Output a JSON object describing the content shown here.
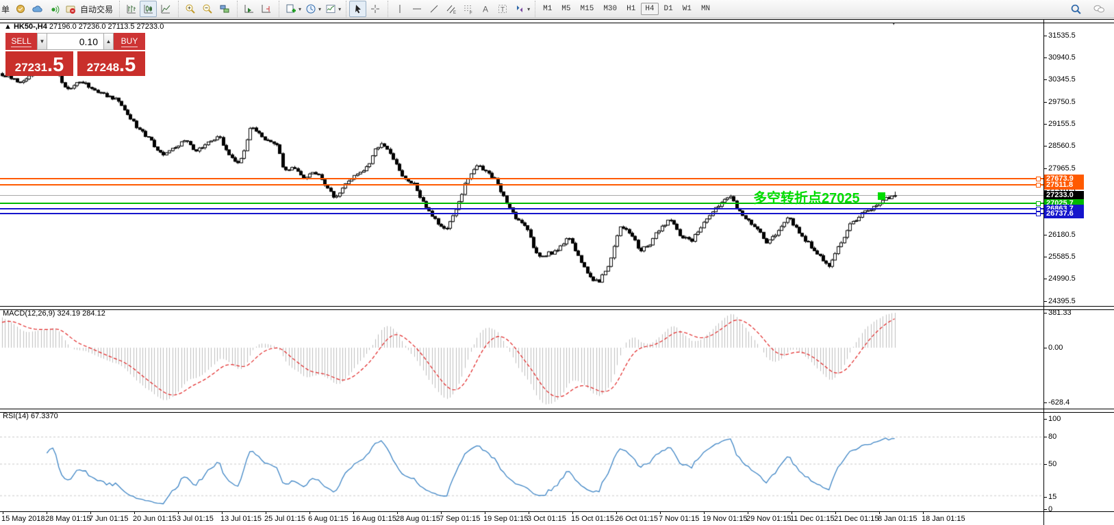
{
  "toolbar": {
    "order_char": "单",
    "auto_trading": "自动交易",
    "timeframes": [
      "M1",
      "M5",
      "M15",
      "M30",
      "H1",
      "H4",
      "D1",
      "W1",
      "MN"
    ],
    "active_timeframe": "H4"
  },
  "title": {
    "collapse": "▲",
    "symbol": "HK50-,H4",
    "ohlc": "27196.0 27236.0 27113.5 27233.0"
  },
  "trade_panel": {
    "sell": "SELL",
    "buy": "BUY",
    "lot": "0.10",
    "bid_int": "27231",
    "bid_frac": ".5",
    "ask_int": "27248",
    "ask_frac": ".5"
  },
  "annotation": {
    "text": "多空转折点27025",
    "color": "#00dc00"
  },
  "chart": {
    "y_ticks": [
      "31535.5",
      "30940.5",
      "30345.5",
      "29750.5",
      "29155.5",
      "28560.5",
      "27965.5",
      "27370.5",
      "26775.5",
      "26180.5",
      "25585.5",
      "24990.5",
      "24395.5"
    ],
    "bid": {
      "label": "27233.0",
      "price": 27233.0,
      "color": "#000000"
    },
    "levels": [
      {
        "label": "27673.9",
        "price": 27673.9,
        "color": "#ff5a00"
      },
      {
        "label": "27511.8",
        "price": 27511.8,
        "color": "#ff5a00"
      },
      {
        "label": "27025.7",
        "price": 27025.7,
        "color": "#00b900"
      },
      {
        "label": "26863.7",
        "price": 26863.7,
        "color": "#1515cc"
      },
      {
        "label": "26737.6",
        "price": 26737.6,
        "color": "#1515cc"
      }
    ],
    "macd": {
      "label": "MACD(12,26,9) 324.19 284.12",
      "ticks": [
        "381.33",
        "0.00",
        "-628.4"
      ]
    },
    "rsi": {
      "label": "RSI(14) 67.3370",
      "ticks": [
        "100",
        "80",
        "50",
        "15",
        "0"
      ],
      "levels": [
        80,
        50,
        15
      ]
    },
    "x_labels": [
      "15 May 2018",
      "28 May 01:15",
      "7 Jun 01:15",
      "20 Jun 01:15",
      "3 Jul 01:15",
      "13 Jul 01:15",
      "25 Jul 01:15",
      "6 Aug 01:15",
      "16 Aug 01:15",
      "28 Aug 01:15",
      "7 Sep 01:15",
      "19 Sep 01:15",
      "3 Oct 01:15",
      "15 Oct 01:15",
      "26 Oct 01:15",
      "7 Nov 01:15",
      "19 Nov 01:15",
      "29 Nov 01:15",
      "11 Dec 01:15",
      "21 Dec 01:15",
      "8 Jan 01:15",
      "18 Jan 01:15"
    ]
  },
  "chart_data": {
    "type": "candlestick",
    "symbol": "HK50-",
    "period": "H4",
    "current_bar": {
      "open": 27196.0,
      "high": 27236.0,
      "low": 27113.5,
      "close": 27233.0
    },
    "bid": 27231.5,
    "ask": 27248.5,
    "ylim": [
      24395.5,
      31535.5
    ],
    "horizontal_lines": [
      {
        "price": 27673.9,
        "color": "orange"
      },
      {
        "price": 27511.8,
        "color": "orange"
      },
      {
        "price": 27025.7,
        "color": "green"
      },
      {
        "price": 26863.7,
        "color": "blue"
      },
      {
        "price": 26737.6,
        "color": "blue"
      }
    ],
    "indicators": {
      "macd": {
        "params": [
          12,
          26,
          9
        ],
        "value": 324.19,
        "signal": 284.12,
        "range": [
          -628.4,
          381.33
        ]
      },
      "rsi": {
        "params": [
          14
        ],
        "value": 67.337,
        "range": [
          0,
          100
        ],
        "levels": [
          80,
          50,
          15
        ]
      }
    },
    "price_path": [
      [
        0,
        30500
      ],
      [
        30,
        30300
      ],
      [
        55,
        30600
      ],
      [
        80,
        30740
      ],
      [
        95,
        30100
      ],
      [
        120,
        30300
      ],
      [
        150,
        29950
      ],
      [
        170,
        29820
      ],
      [
        185,
        29450
      ],
      [
        200,
        29080
      ],
      [
        220,
        28700
      ],
      [
        235,
        28340
      ],
      [
        255,
        28530
      ],
      [
        270,
        28710
      ],
      [
        285,
        28440
      ],
      [
        300,
        28620
      ],
      [
        320,
        28800
      ],
      [
        335,
        28340
      ],
      [
        350,
        28070
      ],
      [
        365,
        29080
      ],
      [
        375,
        28990
      ],
      [
        390,
        28710
      ],
      [
        405,
        28620
      ],
      [
        415,
        27880
      ],
      [
        430,
        27980
      ],
      [
        445,
        27700
      ],
      [
        460,
        27880
      ],
      [
        475,
        27520
      ],
      [
        490,
        27150
      ],
      [
        505,
        27520
      ],
      [
        520,
        27790
      ],
      [
        535,
        27980
      ],
      [
        550,
        28530
      ],
      [
        560,
        28620
      ],
      [
        575,
        28160
      ],
      [
        590,
        27700
      ],
      [
        605,
        27520
      ],
      [
        620,
        26960
      ],
      [
        635,
        26590
      ],
      [
        650,
        26320
      ],
      [
        665,
        26780
      ],
      [
        680,
        27600
      ],
      [
        695,
        28070
      ],
      [
        710,
        27880
      ],
      [
        725,
        27610
      ],
      [
        740,
        27050
      ],
      [
        755,
        26590
      ],
      [
        770,
        26320
      ],
      [
        785,
        25580
      ],
      [
        800,
        25670
      ],
      [
        815,
        25760
      ],
      [
        830,
        26130
      ],
      [
        845,
        25580
      ],
      [
        860,
        25030
      ],
      [
        875,
        24930
      ],
      [
        890,
        25400
      ],
      [
        905,
        26410
      ],
      [
        920,
        26230
      ],
      [
        935,
        25760
      ],
      [
        950,
        25950
      ],
      [
        965,
        26410
      ],
      [
        980,
        26590
      ],
      [
        995,
        26130
      ],
      [
        1010,
        26040
      ],
      [
        1025,
        26410
      ],
      [
        1040,
        26780
      ],
      [
        1055,
        27050
      ],
      [
        1065,
        27240
      ],
      [
        1080,
        26780
      ],
      [
        1095,
        26500
      ],
      [
        1110,
        26230
      ],
      [
        1120,
        25950
      ],
      [
        1135,
        26230
      ],
      [
        1150,
        26690
      ],
      [
        1165,
        26320
      ],
      [
        1180,
        25950
      ],
      [
        1195,
        25670
      ],
      [
        1210,
        25300
      ],
      [
        1225,
        25860
      ],
      [
        1240,
        26410
      ],
      [
        1255,
        26690
      ],
      [
        1270,
        26870
      ],
      [
        1285,
        27050
      ],
      [
        1295,
        27150
      ],
      [
        1308,
        27233
      ]
    ]
  }
}
